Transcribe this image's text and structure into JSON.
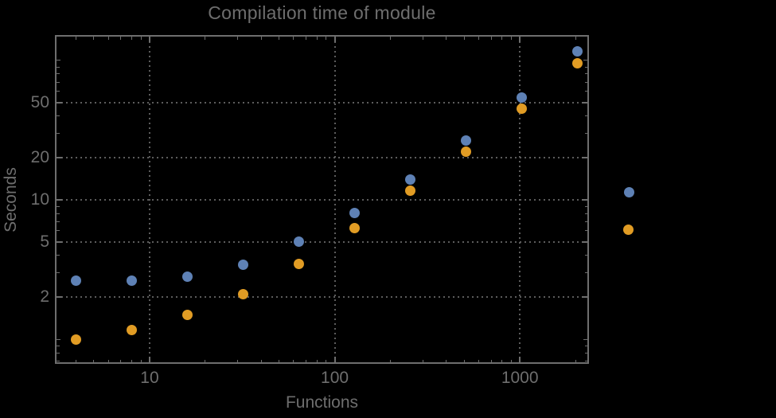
{
  "title": "Compilation time of module",
  "colors": {
    "background": "#000000",
    "text": "#6e6e6e",
    "frame": "#6e6e6e",
    "grid": "#5c5c5c",
    "series_blue": "#5e81b5",
    "series_orange": "#e19c24"
  },
  "chart_data": {
    "type": "scatter",
    "title": "Compilation time of module",
    "xlabel": "Functions",
    "ylabel": "Seconds",
    "xscale": "log",
    "yscale": "log",
    "xlim": [
      3.08,
      2362
    ],
    "ylim": [
      0.667,
      152.3
    ],
    "grid": "dotted, at labeled major ticks only",
    "x": [
      4,
      8,
      16,
      32,
      64,
      128,
      256,
      512,
      1024,
      2048
    ],
    "series": [
      {
        "name": "series-1-blue",
        "color": "#5e81b5",
        "values": [
          2.65,
          2.65,
          2.8,
          3.45,
          5.0,
          8.1,
          14.0,
          26.8,
          54,
          117
        ]
      },
      {
        "name": "series-2-orange",
        "color": "#e19c24",
        "values": [
          1.0,
          1.16,
          1.49,
          2.12,
          3.46,
          6.3,
          11.7,
          22.3,
          45,
          96
        ]
      }
    ],
    "x_major_ticks": [
      10,
      100,
      1000
    ],
    "x_tick_labels": [
      "10",
      "100",
      "1000"
    ],
    "x_minor_ticks": [
      4,
      5,
      6,
      7,
      8,
      9,
      20,
      30,
      40,
      50,
      60,
      70,
      80,
      90,
      200,
      300,
      400,
      500,
      600,
      700,
      800,
      900,
      2000
    ],
    "y_major_ticks": [
      2,
      5,
      10,
      20,
      50
    ],
    "y_tick_labels": [
      "2",
      "5",
      "10",
      "20",
      "50"
    ],
    "y_medium_ticks": [
      1,
      100
    ],
    "y_minor_ticks": [
      0.7,
      0.8,
      0.9,
      3,
      4,
      6,
      7,
      8,
      9,
      30,
      40,
      60,
      70,
      80,
      90
    ],
    "grid_x": [
      10,
      100,
      1000
    ],
    "grid_y": [
      2,
      5,
      10,
      20,
      50
    ],
    "legend": {
      "position": "outside-right",
      "labels_visible": false,
      "markers": [
        {
          "name": "series-1",
          "color": "#5e81b5"
        },
        {
          "name": "series-2",
          "color": "#e19c24"
        }
      ]
    }
  }
}
